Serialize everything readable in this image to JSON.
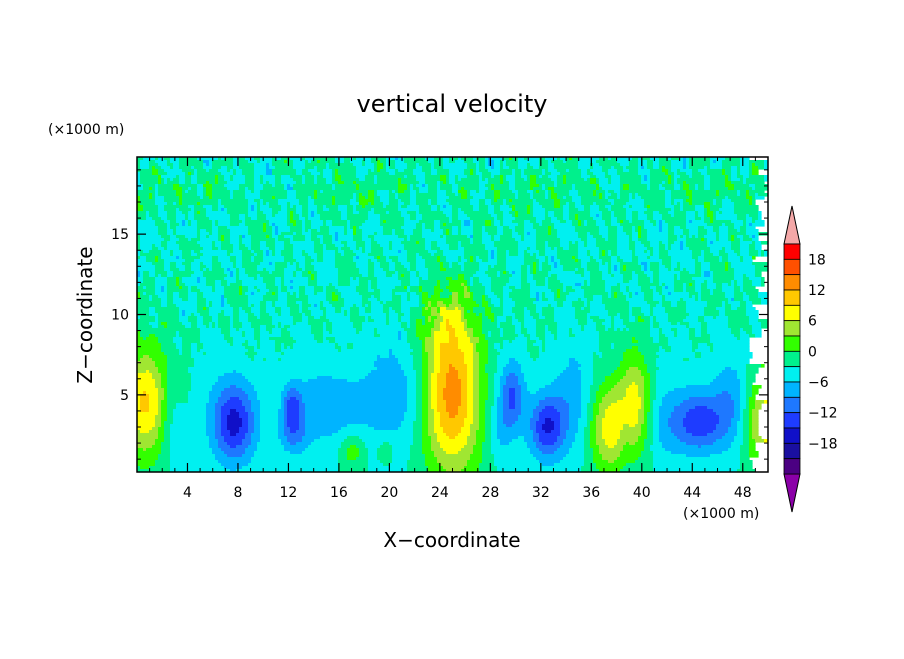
{
  "chart_data": {
    "type": "heatmap",
    "title": "vertical velocity",
    "xlabel": "X−coordinate",
    "ylabel": "Z−coordinate",
    "x_unit": "(×1000 m)",
    "y_unit": "(×1000 m)",
    "xlim": [
      0,
      50
    ],
    "ylim": [
      0.2,
      19.8
    ],
    "x_ticks": [
      4,
      8,
      12,
      16,
      20,
      24,
      28,
      32,
      36,
      40,
      44,
      48
    ],
    "x_tick_labels": [
      "4",
      "8",
      "12",
      "16",
      "20",
      "24",
      "28",
      "32",
      "36",
      "40",
      "44",
      "48"
    ],
    "y_ticks": [
      5,
      10,
      15
    ],
    "y_tick_labels": [
      "5",
      "10",
      "15"
    ],
    "colorbar": {
      "placement": "right",
      "levels": [
        -21,
        -18,
        -15,
        -12,
        -9,
        -6,
        -3,
        0,
        3,
        6,
        9,
        12,
        15,
        18,
        21
      ],
      "colors": [
        "#4b0082",
        "#1a0fa0",
        "#1010c8",
        "#1e3cff",
        "#1e78ff",
        "#00b4ff",
        "#00f0f0",
        "#00f08c",
        "#32ff00",
        "#a0e632",
        "#ffff00",
        "#ffc800",
        "#ff8c00",
        "#ff5000",
        "#ff0000"
      ],
      "under_color": "#8b00a8",
      "over_color": "#f4a8a8",
      "tick_values": [
        -18,
        -12,
        -6,
        0,
        6,
        12,
        18
      ],
      "tick_labels": [
        "−18",
        "−12",
        "−6",
        "0",
        "6",
        "12",
        "18"
      ]
    },
    "features": [
      {
        "x": 0.6,
        "z": 4.5,
        "amp": 14,
        "sx": 1.5,
        "sz": 2.4
      },
      {
        "x": 7.7,
        "z": 3.2,
        "amp": -12,
        "sx": 1.2,
        "sz": 1.7
      },
      {
        "x": 12.3,
        "z": 4.3,
        "amp": -8,
        "sx": 0.5,
        "sz": 0.9
      },
      {
        "x": 12.4,
        "z": 2.6,
        "amp": -6,
        "sx": 0.8,
        "sz": 0.9
      },
      {
        "x": 15.5,
        "z": 4.2,
        "amp": -4,
        "sx": 2.4,
        "sz": 1.6
      },
      {
        "x": 17.1,
        "z": 1.5,
        "amp": 5,
        "sx": 0.7,
        "sz": 0.8
      },
      {
        "x": 19.7,
        "z": 1.6,
        "amp": 3,
        "sx": 0.5,
        "sz": 0.6
      },
      {
        "x": 25.0,
        "z": 5.0,
        "amp": 17,
        "sx": 1.7,
        "sz": 3.4
      },
      {
        "x": 24.5,
        "z": 9.5,
        "amp": 4,
        "sx": 1.3,
        "sz": 1.5
      },
      {
        "x": 29.7,
        "z": 4.9,
        "amp": -9,
        "sx": 0.7,
        "sz": 1.5
      },
      {
        "x": 32.5,
        "z": 3.0,
        "amp": -12,
        "sx": 1.0,
        "sz": 1.4
      },
      {
        "x": 37.4,
        "z": 3.0,
        "amp": 11,
        "sx": 1.1,
        "sz": 2.0
      },
      {
        "x": 39.5,
        "z": 4.6,
        "amp": 10,
        "sx": 0.9,
        "sz": 2.2
      },
      {
        "x": 38.7,
        "z": 2.3,
        "amp": -2,
        "sx": 0.35,
        "sz": 1.6
      },
      {
        "x": 44.6,
        "z": 3.3,
        "amp": -11,
        "sx": 1.3,
        "sz": 1.3
      },
      {
        "x": 47.0,
        "z": 4.5,
        "amp": -5,
        "sx": 1.0,
        "sz": 2.0
      },
      {
        "x": 49.7,
        "z": 3.5,
        "amp": 12,
        "sx": 1.1,
        "sz": 2.2
      },
      {
        "x": 2.7,
        "z": 3.5,
        "amp": -4,
        "sx": 0.7,
        "sz": 2.0
      },
      {
        "x": 20.5,
        "z": 5.5,
        "amp": -3.5,
        "sx": 2.0,
        "sz": 2.5
      },
      {
        "x": 34.5,
        "z": 5.0,
        "amp": -3,
        "sx": 1.0,
        "sz": 2.5
      },
      {
        "x": 28.8,
        "z": 2.5,
        "amp": -3,
        "sx": 0.6,
        "sz": 1.2
      },
      {
        "x": 42.0,
        "z": 3.0,
        "amp": -3,
        "sx": 1.0,
        "sz": 1.5
      }
    ]
  }
}
